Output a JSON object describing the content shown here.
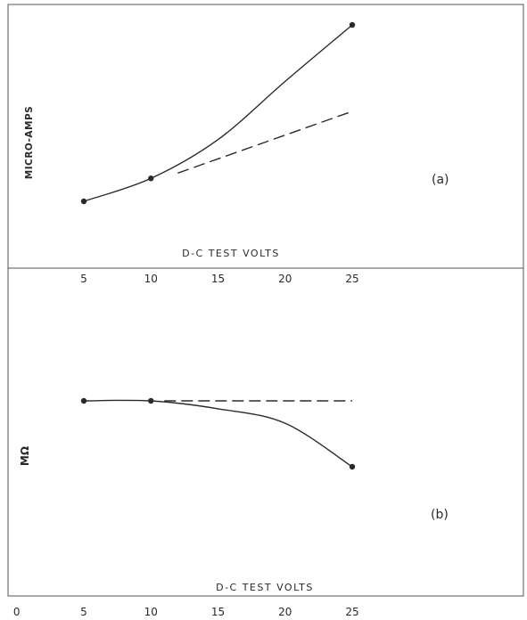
{
  "chart_data": [
    {
      "type": "line",
      "panel_label": "(a)",
      "ylabel": "MICRO-AMPS",
      "xlabel": "D-C TEST VOLTS",
      "x_ticks": [
        "5",
        "10",
        "15",
        "20",
        "25"
      ],
      "xlim": [
        5,
        25
      ],
      "y_units": "relative",
      "series": [
        {
          "style": "solid",
          "x": [
            5,
            10,
            15,
            20,
            25
          ],
          "y": [
            0.0,
            0.13,
            0.35,
            0.68,
            1.0
          ],
          "markers_at": [
            5,
            10,
            25
          ]
        },
        {
          "style": "dashed",
          "x": [
            12,
            25
          ],
          "y": [
            0.16,
            0.51
          ]
        }
      ]
    },
    {
      "type": "line",
      "panel_label": "(b)",
      "ylabel": "MΩ",
      "xlabel": "D-C TEST VOLTS",
      "x_ticks": [
        "0",
        "5",
        "10",
        "15",
        "20",
        "25"
      ],
      "xlim": [
        0,
        25
      ],
      "y_units": "relative",
      "series": [
        {
          "style": "solid",
          "x": [
            5,
            10,
            15,
            20,
            25
          ],
          "y": [
            1.0,
            1.0,
            0.88,
            0.66,
            0.0
          ],
          "markers_at": [
            5,
            10,
            25
          ]
        },
        {
          "style": "dashed",
          "x": [
            11,
            25
          ],
          "y": [
            1.0,
            1.0
          ]
        }
      ]
    }
  ],
  "colors": {
    "ink": "#2a2a2a",
    "frame": "#555555",
    "background": "#ffffff"
  }
}
